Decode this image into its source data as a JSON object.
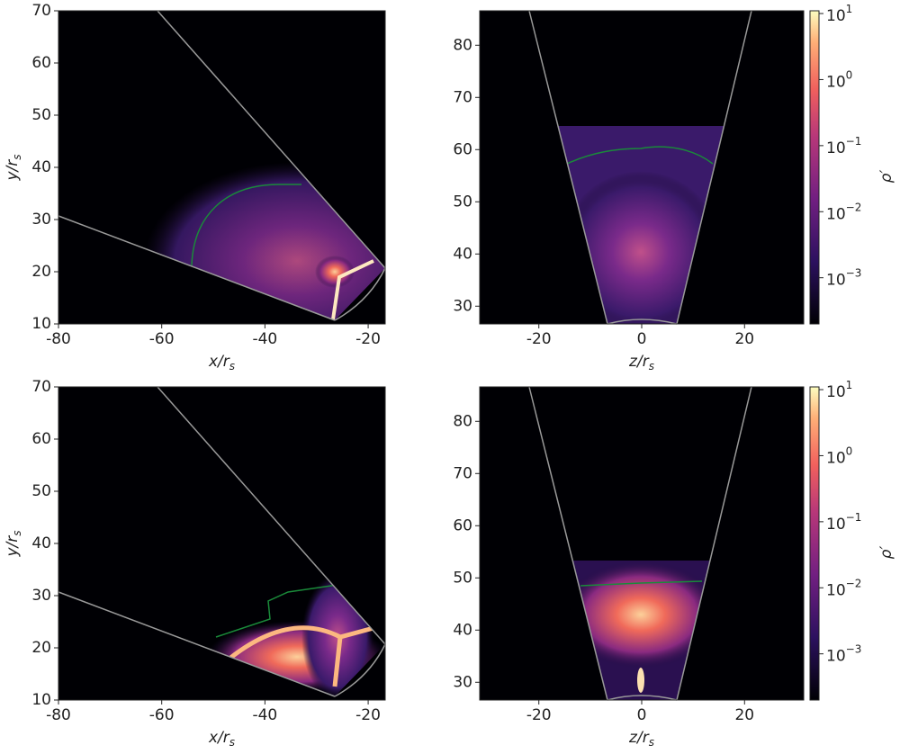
{
  "chart_data": [
    {
      "type": "heatmap",
      "xlabel": "x/r_s",
      "ylabel": "y/r_s",
      "xlim": [
        -80,
        -16.7
      ],
      "ylim": [
        10,
        70
      ],
      "xticks": [
        -80,
        -60,
        -40,
        -20
      ],
      "yticks": [
        10,
        20,
        30,
        40,
        50,
        60,
        70
      ],
      "colormap": "magma"
    },
    {
      "type": "heatmap",
      "xlabel": "z/r_s",
      "xlim": [
        -31.5,
        31.5
      ],
      "ylim": [
        26.6,
        86.6
      ],
      "xticks": [
        -20,
        0,
        20
      ],
      "yticks": [
        30,
        40,
        50,
        60,
        70,
        80
      ],
      "colormap": "magma",
      "colorbar": {
        "label": "ρ′",
        "scale": "log",
        "lim": [
          0.0002,
          11
        ],
        "ticks": [
          {
            "value": 10,
            "label": "10^1"
          },
          {
            "value": 1,
            "label": "10^0"
          },
          {
            "value": 0.1,
            "label": "10^−1"
          },
          {
            "value": 0.01,
            "label": "10^−2"
          },
          {
            "value": 0.001,
            "label": "10^−3"
          }
        ]
      }
    },
    {
      "type": "heatmap",
      "xlabel": "x/r_s",
      "ylabel": "y/r_s",
      "xlim": [
        -80,
        -16.7
      ],
      "ylim": [
        10,
        70
      ],
      "xticks": [
        -80,
        -60,
        -40,
        -20
      ],
      "yticks": [
        10,
        20,
        30,
        40,
        50,
        60,
        70
      ],
      "colormap": "magma"
    },
    {
      "type": "heatmap",
      "xlabel": "z/r_s",
      "xlim": [
        -31.5,
        31.5
      ],
      "ylim": [
        26.6,
        86.6
      ],
      "xticks": [
        -20,
        0,
        20
      ],
      "yticks": [
        30,
        40,
        50,
        60,
        70,
        80
      ],
      "colormap": "magma",
      "colorbar": {
        "label": "ρ′",
        "scale": "log",
        "lim": [
          0.0002,
          11
        ],
        "ticks": [
          {
            "value": 10,
            "label": "10^1"
          },
          {
            "value": 1,
            "label": "10^0"
          },
          {
            "value": 0.1,
            "label": "10^−1"
          },
          {
            "value": 0.01,
            "label": "10^−2"
          },
          {
            "value": 0.001,
            "label": "10^−3"
          }
        ]
      }
    }
  ]
}
